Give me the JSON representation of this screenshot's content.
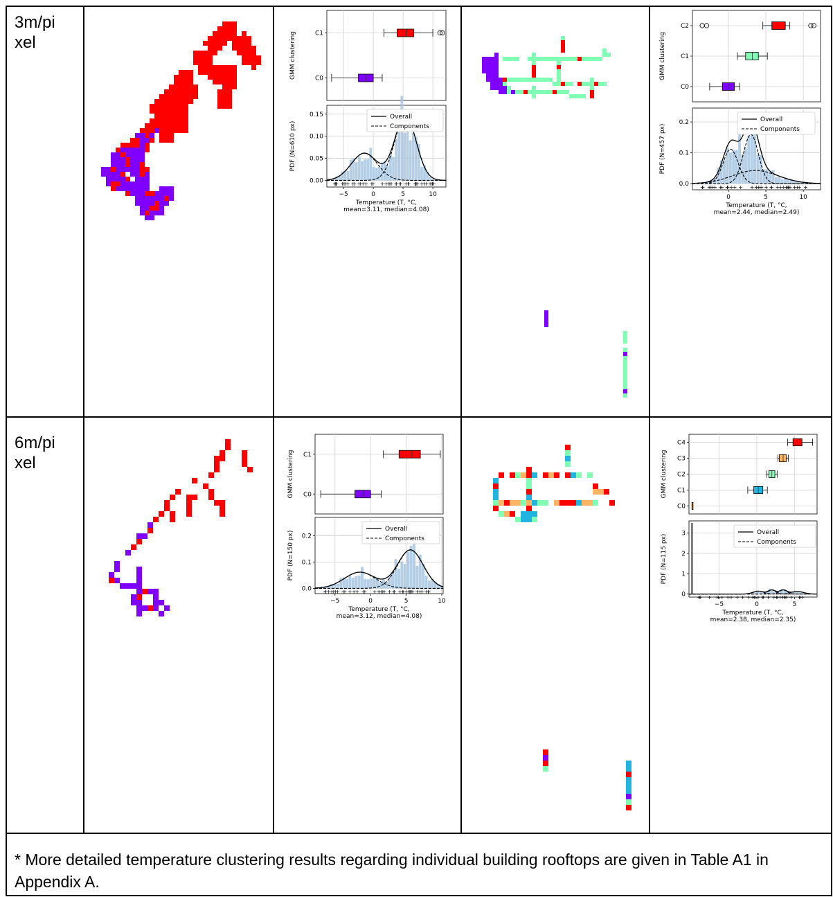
{
  "table": {
    "rows": [
      {
        "label_lines": [
          "3m/pi",
          "xel"
        ],
        "charts": [
          {
            "type": "boxplot+histogram",
            "box": {
              "ylabel": "GMM clustering",
              "clusters": [
                {
                  "name": "C0",
                  "color": "#7f00ff",
                  "q1": -2.5,
                  "median": -1.2,
                  "q3": 0.0,
                  "whisker_low": -7.0,
                  "whisker_high": 1.5,
                  "outliers": []
                },
                {
                  "name": "C1",
                  "color": "#ff0000",
                  "q1": 4.0,
                  "median": 5.5,
                  "q3": 6.8,
                  "whisker_low": 1.8,
                  "whisker_high": 10.0,
                  "outliers": [
                    11.2,
                    11.6
                  ]
                }
              ]
            },
            "pdf": {
              "ylabel": "PDF (N=610 px)",
              "legend": [
                "Overall",
                "Components"
              ],
              "ylim": [
                -0.015,
                0.17
              ],
              "yticks": [
                0.0,
                0.05,
                0.1,
                0.15
              ],
              "components": [
                {
                  "mu": -1.5,
                  "sigma": 2.2,
                  "weight": 0.34
                },
                {
                  "mu": 5.4,
                  "sigma": 1.8,
                  "weight": 0.66
                }
              ]
            },
            "xlim": [
              -7.8,
              12.2
            ],
            "xticks": [
              -5,
              0,
              5,
              10
            ],
            "xlabel": [
              "Temperature (T, °C,",
              "mean=3.11, median=4.08)"
            ]
          },
          {
            "type": "boxplot+histogram",
            "box": {
              "ylabel": "GMM clustering",
              "clusters": [
                {
                  "name": "C0",
                  "color": "#7f00ff",
                  "q1": -0.8,
                  "median": 0.0,
                  "q3": 0.8,
                  "whisker_low": -2.5,
                  "whisker_high": 1.5,
                  "outliers": []
                },
                {
                  "name": "C1",
                  "color": "#80ffb4",
                  "q1": 2.3,
                  "median": 3.2,
                  "q3": 4.0,
                  "whisker_low": 1.2,
                  "whisker_high": 5.2,
                  "outliers": []
                },
                {
                  "name": "C2",
                  "color": "#ff0000",
                  "q1": 5.8,
                  "median": 6.8,
                  "q3": 7.6,
                  "whisker_low": 4.6,
                  "whisker_high": 8.2,
                  "outliers": [
                    -3.5,
                    -2.9,
                    11.0,
                    11.4
                  ]
                }
              ]
            },
            "pdf": {
              "ylabel": "PDF (N=457 px)",
              "legend": [
                "Overall",
                "Components"
              ],
              "ylim": [
                -0.02,
                0.245
              ],
              "yticks": [
                0.0,
                0.1,
                0.2
              ],
              "components": [
                {
                  "mu": 0.3,
                  "sigma": 1.0,
                  "weight": 0.28
                },
                {
                  "mu": 3.0,
                  "sigma": 1.0,
                  "weight": 0.4
                },
                {
                  "mu": 3.6,
                  "sigma": 3.0,
                  "weight": 0.32
                }
              ]
            },
            "xlim": [
              -4.8,
              12.3
            ],
            "xticks": [
              0,
              5,
              10
            ],
            "xlabel": [
              "Temperature (T, °C,",
              "mean=2.44, median=2.49)"
            ]
          }
        ]
      },
      {
        "label_lines": [
          "6m/pi",
          "xel"
        ],
        "charts": [
          {
            "type": "boxplot+histogram",
            "box": {
              "ylabel": "GMM clustering",
              "clusters": [
                {
                  "name": "C0",
                  "color": "#7f00ff",
                  "q1": -2.2,
                  "median": -1.0,
                  "q3": 0.0,
                  "whisker_low": -7.0,
                  "whisker_high": 1.5,
                  "outliers": []
                },
                {
                  "name": "C1",
                  "color": "#ff0000",
                  "q1": 4.0,
                  "median": 5.8,
                  "q3": 7.0,
                  "whisker_low": 1.8,
                  "whisker_high": 9.8,
                  "outliers": []
                }
              ]
            },
            "pdf": {
              "ylabel": "PDF (N=150 px)",
              "legend": [
                "Overall",
                "Components"
              ],
              "ylim": [
                -0.02,
                0.27
              ],
              "yticks": [
                0.0,
                0.1,
                0.2
              ],
              "components": [
                {
                  "mu": -1.5,
                  "sigma": 2.2,
                  "weight": 0.34
                },
                {
                  "mu": 5.6,
                  "sigma": 1.8,
                  "weight": 0.66
                }
              ]
            },
            "xlim": [
              -7.8,
              10.2
            ],
            "xticks": [
              -5,
              0,
              5,
              10
            ],
            "xlabel": [
              "Temperature (T, °C,",
              "mean=3.12, median=4.08)"
            ]
          },
          {
            "type": "boxplot+histogram",
            "box": {
              "ylabel": "GMM clustering",
              "clusters": [
                {
                  "name": "C0",
                  "color": "#ff8000",
                  "q1": -8.6,
                  "median": -8.6,
                  "q3": -8.6,
                  "whisker_low": -8.6,
                  "whisker_high": -8.6,
                  "outliers": []
                },
                {
                  "name": "C1",
                  "color": "#20b4e0",
                  "q1": -0.4,
                  "median": 0.2,
                  "q3": 0.8,
                  "whisker_low": -1.2,
                  "whisker_high": 1.4,
                  "outliers": []
                },
                {
                  "name": "C2",
                  "color": "#80ffb4",
                  "q1": 1.6,
                  "median": 2.0,
                  "q3": 2.4,
                  "whisker_low": 1.3,
                  "whisker_high": 2.7,
                  "outliers": []
                },
                {
                  "name": "C3",
                  "color": "#ffb464",
                  "q1": 3.0,
                  "median": 3.5,
                  "q3": 3.9,
                  "whisker_low": 2.8,
                  "whisker_high": 4.2,
                  "outliers": []
                },
                {
                  "name": "C4",
                  "color": "#ff0000",
                  "q1": 4.8,
                  "median": 5.4,
                  "q3": 6.0,
                  "whisker_low": 4.1,
                  "whisker_high": 7.4,
                  "outliers": []
                }
              ]
            },
            "pdf": {
              "ylabel": "PDF (N=115 px)",
              "legend": [
                "Overall",
                "Components"
              ],
              "ylim": [
                -0.15,
                3.6
              ],
              "yticks": [
                0,
                1,
                2,
                3
              ],
              "spike": {
                "x": -8.6,
                "height": 3.5
              },
              "components": [
                {
                  "mu": 0.2,
                  "sigma": 0.7,
                  "weight": 0.25
                },
                {
                  "mu": 2.0,
                  "sigma": 0.5,
                  "weight": 0.25
                },
                {
                  "mu": 3.5,
                  "sigma": 0.5,
                  "weight": 0.25
                },
                {
                  "mu": 5.4,
                  "sigma": 0.8,
                  "weight": 0.25
                }
              ]
            },
            "xlim": [
              -9.0,
              8.0
            ],
            "xticks": [
              -5,
              0,
              5
            ],
            "xlabel": [
              "Temperature (T, °C,",
              "mean=2.38, median=2.35)"
            ]
          }
        ]
      }
    ],
    "footnote": "* More detailed temperature clustering results regarding individual building rooftops are given in Table A1 in Appendix A."
  },
  "colors": {
    "purple": "#7f00ff",
    "red": "#ff0000",
    "mint": "#80ffb4",
    "orange": "#ffb464",
    "cyan": "#20b4e0",
    "hist": "#a6c6e0"
  }
}
